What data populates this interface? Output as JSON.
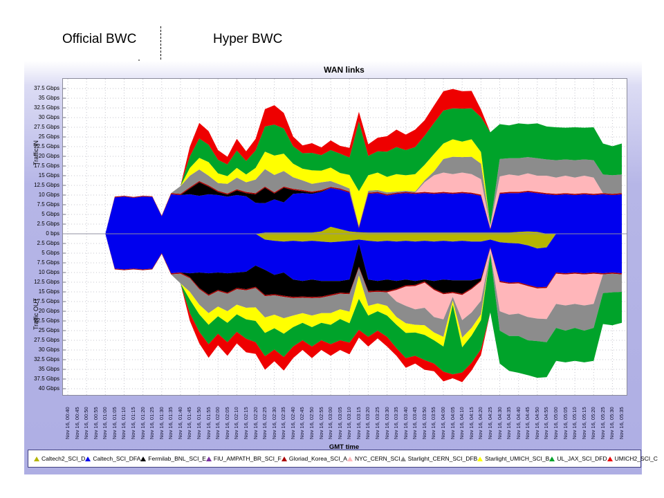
{
  "annotations": {
    "left": "Official BWC",
    "right": "Hyper BWC"
  },
  "chart": {
    "title": "WAN links",
    "xlabel": "GMT time",
    "ylabel_top": "Traffic IN",
    "ylabel_bottom": "Traffic OUT"
  },
  "chart_data": {
    "type": "area",
    "stacked": true,
    "mirrored": true,
    "unit": "Gbps",
    "grid": true,
    "legend_position": "bottom",
    "ylim_in_gbps": [
      0,
      40
    ],
    "ylim_out_gbps": [
      0,
      41.5
    ],
    "ytick_step_gbps": 2.5,
    "yticks_in": [
      "37.5 Gbps",
      "35 Gbps",
      "32.5 Gbps",
      "30 Gbps",
      "27.5 Gbps",
      "25 Gbps",
      "22.5 Gbps",
      "20 Gbps",
      "17.5 Gbps",
      "15 Gbps",
      "12.5 Gbps",
      "10 Gbps",
      "7.5 Gbps",
      "5 Gbps",
      "2.5 Gbps",
      "0 bps"
    ],
    "yticks_out": [
      "2.5 Gbps",
      "5 Gbps",
      "7.5 Gbps",
      "10 Gbps",
      "12.5 Gbps",
      "15 Gbps",
      "17.5 Gbps",
      "20 Gbps",
      "22.5 Gbps",
      "25 Gbps",
      "27.5 Gbps",
      "30 Gbps",
      "32.5 Gbps",
      "35 Gbps",
      "37.5 Gbps",
      "40 Gbps"
    ],
    "x": [
      "Nov 16, 00:40",
      "Nov 16, 00:45",
      "Nov 16, 00:50",
      "Nov 16, 00:55",
      "Nov 16, 01:00",
      "Nov 16, 01:05",
      "Nov 16, 01:10",
      "Nov 16, 01:15",
      "Nov 16, 01:20",
      "Nov 16, 01:25",
      "Nov 16, 01:30",
      "Nov 16, 01:35",
      "Nov 16, 01:40",
      "Nov 16, 01:45",
      "Nov 16, 01:50",
      "Nov 16, 01:55",
      "Nov 16, 02:00",
      "Nov 16, 02:05",
      "Nov 16, 02:10",
      "Nov 16, 02:15",
      "Nov 16, 02:20",
      "Nov 16, 02:25",
      "Nov 16, 02:30",
      "Nov 16, 02:35",
      "Nov 16, 02:40",
      "Nov 16, 02:45",
      "Nov 16, 02:50",
      "Nov 16, 02:55",
      "Nov 16, 03:00",
      "Nov 16, 03:05",
      "Nov 16, 03:10",
      "Nov 16, 03:15",
      "Nov 16, 03:20",
      "Nov 16, 03:25",
      "Nov 16, 03:30",
      "Nov 16, 03:35",
      "Nov 16, 03:40",
      "Nov 16, 03:45",
      "Nov 16, 03:50",
      "Nov 16, 03:55",
      "Nov 16, 04:00",
      "Nov 16, 04:05",
      "Nov 16, 04:10",
      "Nov 16, 04:15",
      "Nov 16, 04:20",
      "Nov 16, 04:25",
      "Nov 16, 04:30",
      "Nov 16, 04:35",
      "Nov 16, 04:40",
      "Nov 16, 04:45",
      "Nov 16, 04:50",
      "Nov 16, 04:55",
      "Nov 16, 05:00",
      "Nov 16, 05:05",
      "Nov 16, 05:10",
      "Nov 16, 05:15",
      "Nov 16, 05:20",
      "Nov 16, 05:25",
      "Nov 16, 05:30",
      "Nov 16, 05:35"
    ],
    "series": [
      {
        "name": "Caltech2_SCI_D",
        "color": "#b5b500",
        "in": [
          0,
          0,
          0,
          0,
          0,
          0,
          0,
          0,
          0,
          0,
          0,
          0,
          0,
          0,
          0,
          0,
          0,
          0,
          0,
          0,
          0,
          0.3,
          0.3,
          0.3,
          0.3,
          0.3,
          0.3,
          0.6,
          1.8,
          1.2,
          0.6,
          0.4,
          0.3,
          0.3,
          0.3,
          0.3,
          0.3,
          0.3,
          0.3,
          0.3,
          0.3,
          0.3,
          0.3,
          0.3,
          0.3,
          0.3,
          0.3,
          0.3,
          0.5,
          0.6,
          0.5,
          0,
          0,
          0,
          0,
          0,
          0,
          0,
          0,
          0
        ],
        "out": [
          0,
          0,
          0,
          0,
          0,
          0,
          0,
          0,
          0,
          0,
          0,
          0,
          0,
          0,
          0,
          0,
          0,
          0,
          0,
          0,
          0,
          1.5,
          1.8,
          2,
          1.8,
          2,
          1.8,
          2,
          2.2,
          2,
          1.8,
          1.5,
          1.8,
          2,
          1.8,
          2,
          1.8,
          2,
          1.8,
          2,
          1.8,
          2,
          1.8,
          2,
          2,
          1.5,
          2.2,
          2.4,
          2.5,
          3,
          3.8,
          3.5,
          0,
          0,
          0,
          0,
          0,
          0,
          0,
          0
        ]
      },
      {
        "name": "Caltech_SCI_DFA",
        "color": "#0000ee",
        "in": [
          0,
          0,
          0,
          0,
          0,
          9.4,
          9.6,
          9.3,
          9.6,
          9.5,
          4.5,
          10.2,
          10,
          10.2,
          9.8,
          10.2,
          10,
          9.6,
          10,
          9.7,
          8,
          7.6,
          8.6,
          7.8,
          10,
          10.2,
          10,
          10.2,
          10,
          10.2,
          10,
          1,
          10,
          10.2,
          9.6,
          10,
          10.2,
          10,
          10.2,
          10,
          10.2,
          10,
          10.2,
          10,
          9.5,
          0.8,
          10,
          10.2,
          10,
          10.2,
          10,
          10.2,
          10,
          10.2,
          10,
          10.2,
          10,
          10.2,
          10,
          10.2
        ],
        "out": [
          0,
          0,
          0,
          0,
          0,
          9,
          9.2,
          9,
          9.2,
          9,
          5,
          10.2,
          10,
          10.2,
          10,
          10.2,
          10,
          10.2,
          10,
          9.8,
          8.2,
          7.8,
          8.8,
          8,
          10,
          10.2,
          10,
          10.2,
          10,
          10.2,
          10,
          1,
          10,
          10.2,
          10,
          10.2,
          10,
          10.2,
          10,
          10.2,
          10,
          10,
          10.2,
          10,
          9.5,
          2,
          10,
          10.2,
          10,
          10.2,
          10,
          10.2,
          10,
          10.2,
          10,
          10.2,
          10,
          10.2,
          10,
          10.2
        ]
      },
      {
        "name": "Fermilab_BNL_SCI_E",
        "color": "#000000",
        "in": [
          0,
          0,
          0,
          0,
          0,
          0,
          0,
          0,
          0,
          0,
          0,
          0,
          0,
          1.5,
          3.5,
          2,
          0.8,
          0.5,
          1.2,
          0.8,
          2.2,
          4,
          1.5,
          3.8,
          1,
          0.5,
          0.3,
          0.2,
          0,
          0,
          0,
          0,
          0,
          0,
          0,
          0,
          0,
          0,
          0,
          0,
          0,
          0,
          0,
          0,
          0,
          0,
          0,
          0,
          0,
          0,
          0,
          0,
          0,
          0,
          0,
          0,
          0,
          0,
          0,
          0
        ],
        "out": [
          0,
          0,
          0,
          0,
          0,
          0,
          0,
          0,
          0,
          0,
          0,
          0,
          0,
          1,
          4,
          5.5,
          4.5,
          5,
          4,
          4.5,
          5.5,
          6.5,
          5,
          6,
          4.5,
          4,
          4.5,
          4,
          3.5,
          3,
          3.5,
          6,
          3,
          2.5,
          3,
          2,
          1.5,
          1,
          0.5,
          2,
          3.5,
          3,
          3.5,
          2,
          0.5,
          0,
          0,
          0,
          0,
          0,
          0,
          0,
          0,
          0,
          0,
          0,
          0,
          0,
          0,
          0
        ]
      },
      {
        "name": "FIU_AMPATH_BR_SCI_F",
        "color": "#7a30a0",
        "in": 0,
        "out": 0
      },
      {
        "name": "Gloriad_Korea_SCI_A",
        "color": "#aa0000",
        "in": [
          0,
          0,
          0,
          0,
          0,
          0.2,
          0.2,
          0.2,
          0.2,
          0.2,
          0.2,
          0.3,
          0.3,
          0.3,
          0.3,
          0.3,
          0.3,
          0.3,
          0.3,
          0.3,
          0.3,
          0.3,
          0.3,
          0.3,
          0.3,
          0.3,
          0.3,
          0.3,
          0.3,
          0.3,
          0.3,
          0.3,
          0.3,
          0.3,
          0.3,
          0.3,
          0.3,
          0.3,
          0.3,
          0.3,
          0.3,
          0.3,
          0.3,
          0.3,
          0.3,
          0.3,
          0.3,
          0.3,
          0.3,
          0.3,
          0.3,
          0.3,
          0.3,
          0.3,
          0.3,
          0.3,
          0.3,
          0.3,
          0.3,
          0.3
        ],
        "out": [
          0,
          0,
          0,
          0,
          0,
          0.2,
          0.2,
          0.2,
          0.2,
          0.2,
          0.2,
          0.3,
          0.3,
          0.3,
          0.3,
          0.3,
          0.3,
          0.3,
          0.3,
          0.3,
          0.3,
          0.3,
          0.3,
          0.3,
          0.3,
          0.3,
          0.3,
          0.3,
          0.3,
          0.3,
          0.3,
          0.3,
          0.3,
          0.3,
          0.3,
          0.3,
          0.3,
          0.3,
          0.3,
          0.3,
          0.3,
          0.3,
          0.3,
          0.3,
          0.3,
          0.3,
          0.3,
          0.3,
          0.3,
          0.3,
          0.3,
          0.3,
          0.3,
          0.3,
          0.3,
          0.3,
          0.3,
          0.3,
          0.3,
          0.3
        ]
      },
      {
        "name": "NYC_CERN_SCI",
        "color": "#ffb6ba",
        "in": [
          0,
          0,
          0,
          0,
          0,
          0,
          0,
          0,
          0,
          0,
          0,
          0,
          0,
          0,
          0,
          0,
          0,
          0,
          0,
          0,
          0,
          0,
          0,
          0,
          0,
          0,
          0,
          0,
          0,
          0,
          0,
          0,
          0,
          0,
          0,
          0,
          0,
          0,
          2.5,
          4.5,
          5,
          4.8,
          5,
          4.8,
          4,
          0.5,
          4.2,
          4.5,
          4.2,
          4.5,
          4.2,
          4.5,
          4.2,
          4.5,
          4.2,
          4.5,
          4.2,
          0,
          0,
          0
        ],
        "out": [
          0,
          0,
          0,
          0,
          0,
          0,
          0,
          0,
          0,
          0,
          0,
          0,
          0,
          0,
          0,
          0,
          0,
          0,
          0,
          0,
          0,
          0,
          0,
          0,
          0,
          0,
          0,
          0,
          0,
          0,
          0,
          0,
          0,
          0,
          0,
          3,
          5,
          6,
          6.5,
          7,
          6.5,
          1,
          6.5,
          6,
          5,
          1,
          7.5,
          8,
          7.8,
          8,
          7.8,
          8,
          7.8,
          8,
          7.8,
          8,
          7.8,
          0,
          0,
          0
        ]
      },
      {
        "name": "Starlight_CERN_SCI_DFB",
        "color": "#8c8c8c",
        "in": [
          0,
          0,
          0,
          0,
          0,
          0,
          0,
          0,
          0,
          0,
          0,
          0,
          2,
          3,
          3,
          2.5,
          2,
          2.5,
          3,
          2.5,
          3.5,
          4.5,
          4.5,
          4,
          3,
          2.5,
          2,
          2,
          1.5,
          1,
          0.8,
          0.3,
          0.5,
          0.5,
          0.5,
          0.3,
          0.3,
          0.3,
          0.5,
          1,
          3.5,
          4.5,
          4,
          4.5,
          4,
          0.3,
          4.5,
          4.2,
          4.5,
          4.2,
          4.5,
          4.2,
          4.5,
          4.2,
          4.5,
          4.2,
          4.5,
          4.8,
          4.8,
          4.8
        ],
        "out": [
          0,
          0,
          0,
          0,
          0,
          0,
          0,
          0,
          0,
          0,
          0,
          0,
          2.5,
          3.5,
          4,
          4.5,
          4,
          4.5,
          4,
          4.5,
          5,
          5.5,
          5,
          5.5,
          4.5,
          4,
          4.5,
          4,
          4.5,
          4,
          4.5,
          2,
          3.5,
          3,
          3.5,
          4,
          4.5,
          4,
          4.5,
          4,
          4.5,
          1,
          4.5,
          4,
          3.5,
          0.5,
          5,
          5.5,
          5.8,
          6,
          5.8,
          6,
          6.2,
          6.5,
          6.2,
          6.5,
          6.2,
          4.8,
          4.8,
          4.5
        ]
      },
      {
        "name": "Starlight_UMICH_SCI_B",
        "color": "#ffff00",
        "in": [
          0,
          0,
          0,
          0,
          0,
          0,
          0,
          0,
          0,
          0,
          0,
          0,
          0,
          2,
          3,
          3.5,
          2.5,
          2,
          2.5,
          2,
          3,
          4.5,
          5,
          4.5,
          3.5,
          3,
          3.5,
          3,
          3.5,
          3,
          3.5,
          9,
          4,
          4.5,
          4,
          4.5,
          4,
          4.5,
          4,
          4.5,
          4,
          4.5,
          4,
          4.5,
          3,
          0,
          0,
          0,
          0,
          0,
          0,
          0,
          0,
          0,
          0,
          0,
          0,
          0,
          0,
          0
        ],
        "out": [
          0,
          0,
          0,
          0,
          0,
          0,
          0,
          0,
          0,
          0,
          0,
          0,
          0,
          2,
          2.5,
          3,
          2.5,
          3,
          2.5,
          3,
          3.5,
          4,
          3.5,
          4,
          3,
          2.5,
          3,
          2.5,
          3,
          2.5,
          3,
          6,
          2.5,
          2,
          2.5,
          2,
          2.5,
          2,
          2.5,
          2,
          2.5,
          1,
          2.5,
          2,
          1.5,
          0,
          0,
          0,
          0,
          0,
          0,
          0,
          0,
          0,
          0,
          0,
          0,
          0,
          0,
          0
        ]
      },
      {
        "name": "UL_JAX_SCI_DFD",
        "color": "#00a32a",
        "in": [
          0,
          0,
          0,
          0,
          0,
          0,
          0,
          0,
          0,
          0,
          0,
          0,
          0,
          3,
          5,
          4.5,
          3.5,
          3,
          4.5,
          3.5,
          4.5,
          6.5,
          8,
          6.5,
          4.5,
          4,
          4.5,
          4,
          4.5,
          5,
          4.5,
          18,
          5,
          5.5,
          6.5,
          7,
          6.5,
          7,
          7.5,
          8,
          8.5,
          8,
          8.5,
          8,
          9,
          24,
          9,
          8.5,
          9,
          8.5,
          9,
          8.5,
          8.5,
          8.2,
          8.5,
          8.2,
          8.5,
          8,
          7.5,
          8
        ],
        "out": [
          0,
          0,
          0,
          0,
          0,
          0,
          0,
          0,
          0,
          0,
          0,
          0,
          0,
          3.5,
          4.5,
          5,
          4.5,
          5,
          4.5,
          5,
          5.5,
          6,
          5.5,
          6,
          5,
          4.5,
          5,
          4.5,
          5,
          5.5,
          5,
          8,
          5.5,
          5,
          5.5,
          6,
          6.5,
          6,
          6.5,
          6,
          6.5,
          18,
          6.5,
          7,
          7.5,
          15,
          8.5,
          9,
          9.5,
          9,
          9.5,
          9,
          8.5,
          8.2,
          8.5,
          8.2,
          8.5,
          8,
          8.5,
          8
        ]
      },
      {
        "name": "UMICH2_SCI_C",
        "color": "#ee0000",
        "in": [
          0,
          0,
          0,
          0,
          0,
          0,
          0,
          0,
          0,
          0,
          0,
          0,
          0,
          2.5,
          4,
          3.5,
          2.5,
          2,
          3,
          2.5,
          3,
          4.5,
          5,
          4,
          2.5,
          2,
          2.5,
          2,
          2.5,
          2,
          2.5,
          2.5,
          3,
          3.5,
          4,
          4.5,
          4,
          4.5,
          4,
          4.5,
          5,
          5,
          4.5,
          4.5,
          2,
          0,
          0,
          0,
          0,
          0,
          0,
          0,
          0,
          0,
          0,
          0,
          0,
          0,
          0,
          0
        ],
        "out": [
          0,
          0,
          0,
          0,
          0,
          0,
          0,
          0,
          0,
          0,
          0,
          0,
          0,
          2,
          3,
          3.5,
          3,
          3.5,
          3,
          3.5,
          3,
          3.5,
          3,
          3.5,
          3,
          2.5,
          3,
          2.5,
          3,
          2.5,
          3,
          2,
          2.5,
          2,
          2.5,
          2,
          2.5,
          2,
          2.5,
          2,
          2.5,
          1,
          2.5,
          2,
          1.5,
          0,
          0,
          0,
          0,
          0,
          0,
          0,
          0,
          0,
          0,
          0,
          0,
          0,
          0,
          0
        ]
      }
    ]
  }
}
